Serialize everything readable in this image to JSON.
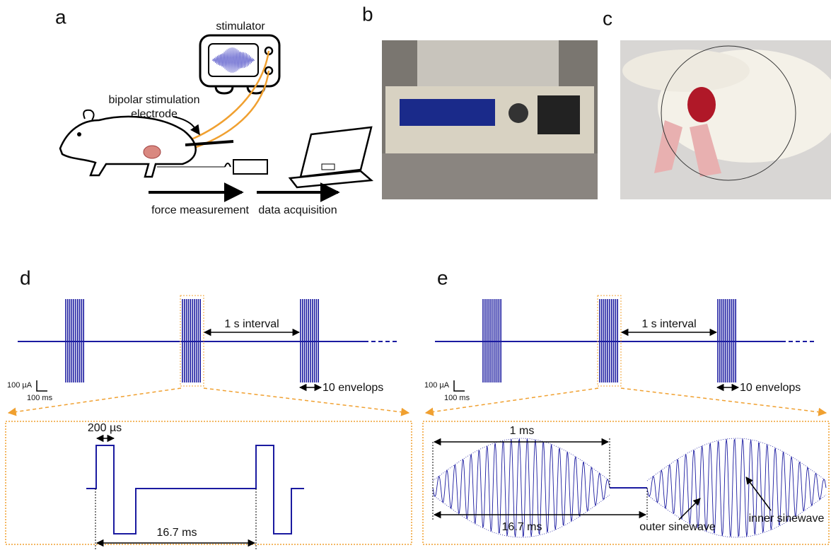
{
  "panels": {
    "a": {
      "label": "a",
      "stimulator": "stimulator",
      "electrode": [
        "bipolar stimulation",
        "electrode"
      ],
      "force": "force measurement",
      "acquisition": "data acquisition"
    },
    "b": {
      "label": "b"
    },
    "c": {
      "label": "c"
    },
    "d": {
      "label": "d",
      "interval": "1 s interval",
      "amp_scale": "100 µA",
      "time_scale": "100 ms",
      "envelopes": "10 envelops",
      "pulse_width": "200 µs",
      "period": "16.7 ms"
    },
    "e": {
      "label": "e",
      "interval": "1 s interval",
      "amp_scale": "100 µA",
      "time_scale": "100 ms",
      "envelopes": "10 envelops",
      "burst": "1 ms",
      "period": "16.7 ms",
      "outer": "outer sinewave",
      "inner": "inner sinewave"
    }
  }
}
